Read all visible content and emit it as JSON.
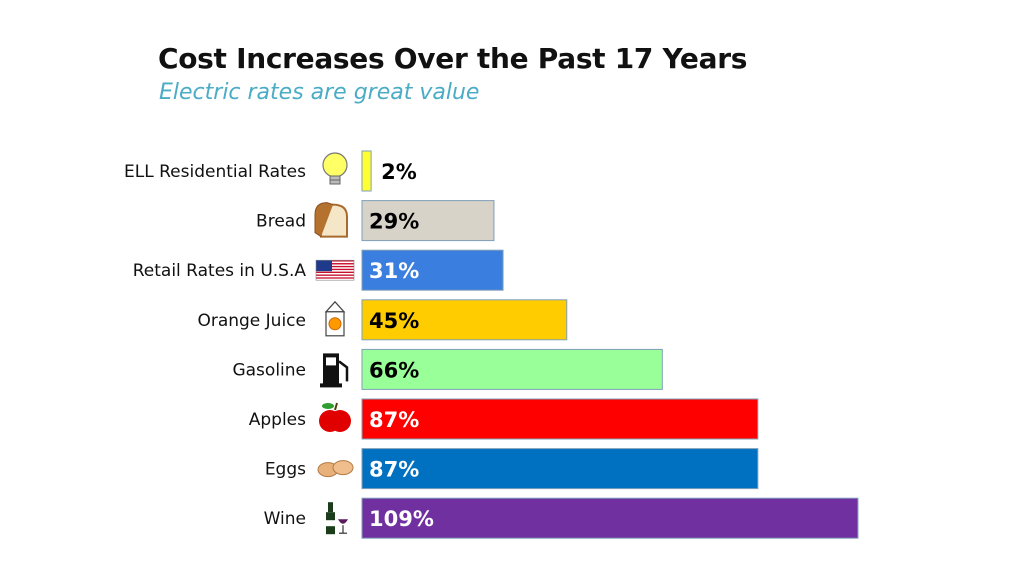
{
  "title": "Cost Increases Over the Past 17 Years",
  "subtitle": "Electric rates are great value",
  "chart_data": {
    "type": "bar",
    "orientation": "horizontal",
    "title": "Cost Increases Over the Past 17 Years",
    "subtitle": "Electric rates are great value",
    "categories": [
      "ELL Residential Rates",
      "Bread",
      "Retail Rates in U.S.A",
      "Orange Juice",
      "Gasoline",
      "Apples",
      "Eggs",
      "Wine"
    ],
    "values": [
      2,
      29,
      31,
      45,
      66,
      87,
      87,
      109
    ],
    "value_labels": [
      "2%",
      "29%",
      "31%",
      "45%",
      "66%",
      "87%",
      "87%",
      "109%"
    ],
    "icons": [
      "light-bulb-icon",
      "bread-icon",
      "us-flag-icon",
      "orange-juice-carton-icon",
      "gas-pump-icon",
      "apple-icon",
      "eggs-icon",
      "wine-icon"
    ],
    "colors": [
      "#ffff33",
      "#d7d3c8",
      "#3a7fe0",
      "#ffcc00",
      "#99ff99",
      "#ff0000",
      "#0070c0",
      "#7030a0"
    ],
    "label_colors": [
      "#000000",
      "#000000",
      "#ffffff",
      "#000000",
      "#000000",
      "#ffffff",
      "#ffffff",
      "#ffffff"
    ],
    "xlim": [
      0,
      110
    ],
    "grid": false,
    "legend": "none"
  }
}
